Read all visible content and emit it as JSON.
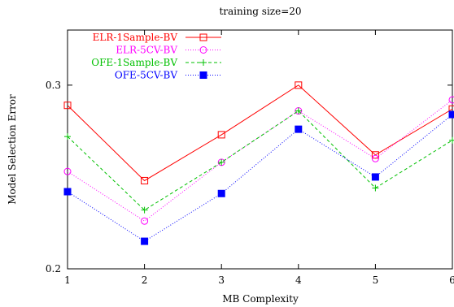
{
  "chart_data": {
    "type": "line",
    "title": "training size=20",
    "xlabel": "MB Complexity",
    "ylabel": "Model Selection Error",
    "x": [
      1,
      2,
      3,
      4,
      5,
      6
    ],
    "xticks": [
      "1",
      "2",
      "3",
      "4",
      "5",
      "6"
    ],
    "yticks": [
      0.2,
      0.3
    ],
    "ytick_labels": [
      "0.2",
      "0.3"
    ],
    "xlim": [
      1,
      6
    ],
    "ylim": [
      0.2,
      0.33
    ],
    "grid": false,
    "legend_position": "top-left",
    "series": [
      {
        "name": "ELR-1Sample-BV",
        "color": "#ff0000",
        "marker": "open-square",
        "dash": "solid",
        "values": [
          0.289,
          0.248,
          0.273,
          0.3,
          0.262,
          0.287
        ]
      },
      {
        "name": "ELR-5CV-BV",
        "color": "#ff00ff",
        "marker": "open-circle",
        "dash": "dotted",
        "values": [
          0.253,
          0.226,
          0.258,
          0.286,
          0.26,
          0.292
        ]
      },
      {
        "name": "OFE-1Sample-BV",
        "color": "#00c000",
        "marker": "plus",
        "dash": "dashed",
        "values": [
          0.272,
          0.232,
          0.258,
          0.286,
          0.244,
          0.27
        ]
      },
      {
        "name": "OFE-5CV-BV",
        "color": "#0000ff",
        "marker": "filled-square",
        "dash": "dense-dotted",
        "values": [
          0.242,
          0.215,
          0.241,
          0.276,
          0.25,
          0.284
        ]
      }
    ]
  }
}
